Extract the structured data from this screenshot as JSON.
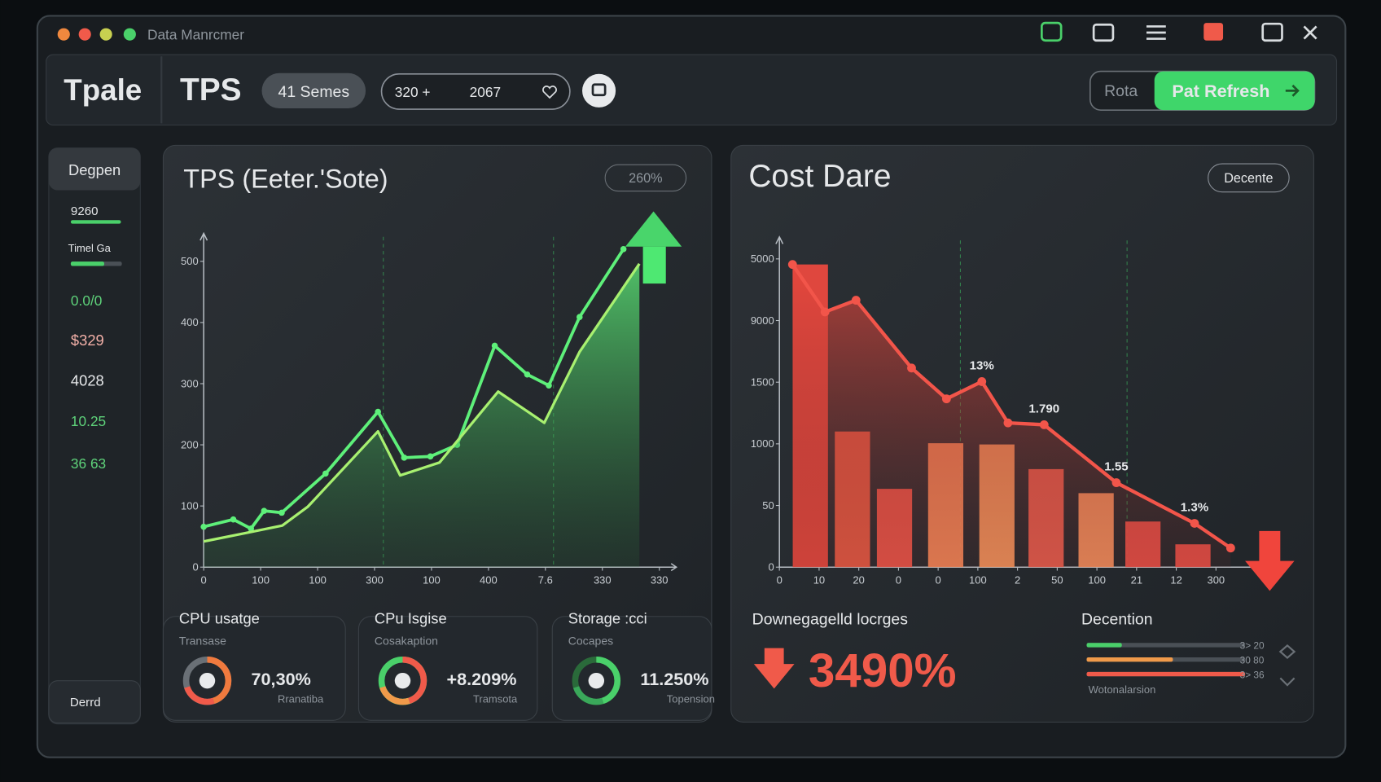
{
  "window": {
    "title": "Data Manrcmer"
  },
  "toolbar": {
    "brand": "Tpale",
    "section": "TPS",
    "filter": "41 Semes",
    "range": [
      "320 +",
      "2067"
    ],
    "buttons": [
      "Rota",
      "Pat Refresh"
    ]
  },
  "sidebar": {
    "header": "Degpen",
    "items": [
      "9260",
      "Timel Ga",
      "0.0/0",
      "$329",
      "4028",
      "10.25",
      "36 63"
    ],
    "footer": "Derrd"
  },
  "stats": [
    {
      "title": "CPU usatge",
      "subtitle": "Transase",
      "value": "70,30%",
      "note": "Rranatiba"
    },
    {
      "title": "CPu Isgise",
      "subtitle": "Cosakaption",
      "value": "+8.209%",
      "note": "Tramsota"
    },
    {
      "title": "Storage :cci",
      "subtitle": "Cocapes",
      "value": "11.250%",
      "note": "Topension"
    }
  ],
  "cost_summary": {
    "label": "Downegagelld locrges",
    "value": "3490%",
    "legend_title": "Decention",
    "levels": [
      "3> 20",
      "30 80",
      "3> 36"
    ],
    "footnote": "Wotonalarsion"
  },
  "chart_data": [
    {
      "type": "line",
      "title": "TPS (Eeter.'Sote)",
      "badge": "260%",
      "xlim": [
        0,
        8.3
      ],
      "xticks": [
        0,
        {
          "value": 1,
          "label": "100"
        },
        {
          "value": 2,
          "label": "100"
        },
        {
          "value": 3,
          "label": "300"
        },
        {
          "value": 4,
          "label": "100"
        },
        {
          "value": 5,
          "label": "400"
        },
        {
          "value": 6,
          "label": "7.6"
        },
        {
          "value": 7,
          "label": "330"
        },
        {
          "value": 8,
          "label": "330"
        }
      ],
      "ylim": [
        0,
        540
      ],
      "yticks": [
        0,
        100,
        200,
        300,
        400,
        500
      ],
      "series": [
        {
          "color": "#5ef07a",
          "x": [
            0,
            0.52,
            0.83,
            1.06,
            1.37,
            2.14,
            3.06,
            3.52,
            3.98,
            4.45,
            5.11,
            5.68,
            6.06,
            6.6,
            7.37
          ],
          "values": [
            66,
            78,
            63,
            92,
            89,
            153,
            254,
            179,
            181,
            200,
            362,
            315,
            297,
            409,
            520
          ]
        },
        {
          "color": "#a8f070",
          "x": [
            0,
            0.75,
            1.38,
            1.83,
            3.06,
            3.45,
            4.14,
            5.17,
            5.98,
            6.6,
            7.65
          ],
          "values": [
            42,
            56,
            68,
            99,
            222,
            150,
            171,
            287,
            236,
            352,
            496
          ]
        }
      ]
    },
    {
      "type": "combo",
      "title": "Cost Dare",
      "badge": "Decente",
      "xlim": [
        0,
        12
      ],
      "xticks": [
        0,
        {
          "value": 1,
          "label": "10"
        },
        {
          "value": 2,
          "label": "20"
        },
        {
          "value": 3,
          "label": "0"
        },
        {
          "value": 4,
          "label": "0"
        },
        {
          "value": 5,
          "label": "100"
        },
        {
          "value": 6,
          "label": "2"
        },
        {
          "value": 7,
          "label": "50"
        },
        {
          "value": 8,
          "label": "100"
        },
        {
          "value": 9,
          "label": "21"
        },
        {
          "value": 10,
          "label": "12"
        },
        {
          "value": 11,
          "label": "300"
        }
      ],
      "ylim": [
        0,
        5.3
      ],
      "yticks": [
        0,
        {
          "value": 1,
          "label": "50"
        },
        {
          "value": 2,
          "label": "1000"
        },
        {
          "value": 3,
          "label": "1500"
        },
        {
          "value": 4,
          "label": "9000"
        },
        {
          "value": 5,
          "label": "5000"
        }
      ],
      "series": [
        {
          "type": "bar",
          "x": [
            0.78,
            1.84,
            2.9,
            4.19,
            5.48,
            6.72,
            7.98,
            9.16,
            10.42
          ],
          "values": [
            4.91,
            2.2,
            1.27,
            2.01,
            1.99,
            1.59,
            1.2,
            0.74,
            0.37
          ],
          "colors": [
            "#ef4a3f",
            "#f05c44",
            "#f5574a",
            "#ff8c5a",
            "#ff9a5e",
            "#f2604f",
            "#ff9560",
            "#f25048",
            "#f25048"
          ]
        },
        {
          "type": "line",
          "color": "#f2554a",
          "x": [
            0.33,
            1.15,
            1.93,
            3.33,
            4.21,
            5.1,
            5.76,
            6.67,
            8.49,
            10.46,
            11.37
          ],
          "values": [
            4.91,
            4.14,
            4.33,
            3.23,
            2.73,
            3.01,
            2.34,
            2.31,
            1.37,
            0.71,
            0.31
          ]
        }
      ],
      "annotations": [
        "13%",
        "1.790",
        "1.55",
        "1.3%"
      ]
    }
  ]
}
